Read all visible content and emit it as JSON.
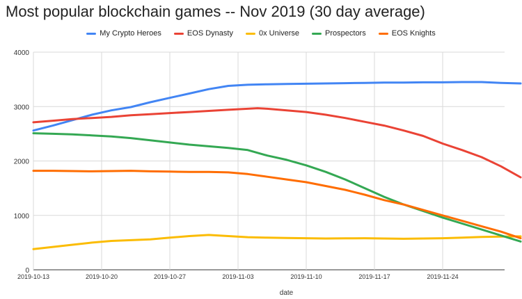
{
  "chart_data": {
    "type": "line",
    "title": "Most popular blockchain games -- Nov 2019 (30 day average)",
    "xlabel": "date",
    "ylabel": "",
    "ylim": [
      0,
      4000
    ],
    "yticks": [
      "0",
      "1000",
      "2000",
      "3000",
      "4000"
    ],
    "xticks": [
      "2019-10-13",
      "2019-10-20",
      "2019-10-27",
      "2019-11-03",
      "2019-11-10",
      "2019-11-17",
      "2019-11-24"
    ],
    "grid": true,
    "legend_position": "top",
    "x_day_start": 0,
    "x_day_end": 50,
    "series": [
      {
        "name": "My Crypto Heroes",
        "color": "#4285f4",
        "points": [
          [
            0,
            2560
          ],
          [
            2,
            2650
          ],
          [
            4,
            2750
          ],
          [
            6,
            2850
          ],
          [
            8,
            2930
          ],
          [
            10,
            2990
          ],
          [
            12,
            3080
          ],
          [
            14,
            3160
          ],
          [
            16,
            3240
          ],
          [
            18,
            3320
          ],
          [
            20,
            3380
          ],
          [
            22,
            3400
          ],
          [
            24,
            3410
          ],
          [
            26,
            3415
          ],
          [
            28,
            3420
          ],
          [
            30,
            3425
          ],
          [
            32,
            3430
          ],
          [
            34,
            3435
          ],
          [
            36,
            3440
          ],
          [
            38,
            3440
          ],
          [
            40,
            3445
          ],
          [
            42,
            3445
          ],
          [
            44,
            3450
          ],
          [
            46,
            3450
          ],
          [
            48,
            3435
          ],
          [
            50,
            3425
          ]
        ]
      },
      {
        "name": "EOS Dynasty",
        "color": "#ea4335",
        "points": [
          [
            0,
            2710
          ],
          [
            2,
            2740
          ],
          [
            4,
            2770
          ],
          [
            6,
            2790
          ],
          [
            8,
            2810
          ],
          [
            10,
            2840
          ],
          [
            12,
            2860
          ],
          [
            14,
            2880
          ],
          [
            16,
            2900
          ],
          [
            18,
            2920
          ],
          [
            20,
            2940
          ],
          [
            22,
            2960
          ],
          [
            23,
            2970
          ],
          [
            24,
            2960
          ],
          [
            26,
            2930
          ],
          [
            28,
            2900
          ],
          [
            30,
            2850
          ],
          [
            32,
            2790
          ],
          [
            34,
            2720
          ],
          [
            36,
            2650
          ],
          [
            38,
            2560
          ],
          [
            40,
            2460
          ],
          [
            42,
            2320
          ],
          [
            44,
            2200
          ],
          [
            46,
            2070
          ],
          [
            48,
            1900
          ],
          [
            50,
            1700
          ]
        ]
      },
      {
        "name": "0x Universe",
        "color": "#fbbc04",
        "points": [
          [
            0,
            380
          ],
          [
            2,
            420
          ],
          [
            4,
            460
          ],
          [
            6,
            500
          ],
          [
            8,
            530
          ],
          [
            10,
            545
          ],
          [
            12,
            560
          ],
          [
            14,
            590
          ],
          [
            16,
            620
          ],
          [
            18,
            640
          ],
          [
            20,
            620
          ],
          [
            22,
            600
          ],
          [
            24,
            590
          ],
          [
            26,
            585
          ],
          [
            28,
            580
          ],
          [
            30,
            575
          ],
          [
            32,
            578
          ],
          [
            34,
            580
          ],
          [
            36,
            575
          ],
          [
            38,
            570
          ],
          [
            40,
            575
          ],
          [
            42,
            580
          ],
          [
            44,
            590
          ],
          [
            46,
            605
          ],
          [
            48,
            610
          ],
          [
            50,
            615
          ]
        ]
      },
      {
        "name": "Prospectors",
        "color": "#34a853",
        "points": [
          [
            0,
            2510
          ],
          [
            2,
            2500
          ],
          [
            4,
            2490
          ],
          [
            6,
            2470
          ],
          [
            8,
            2450
          ],
          [
            10,
            2420
          ],
          [
            12,
            2380
          ],
          [
            14,
            2340
          ],
          [
            16,
            2300
          ],
          [
            18,
            2270
          ],
          [
            20,
            2240
          ],
          [
            22,
            2200
          ],
          [
            24,
            2100
          ],
          [
            26,
            2020
          ],
          [
            28,
            1920
          ],
          [
            30,
            1800
          ],
          [
            32,
            1660
          ],
          [
            34,
            1500
          ],
          [
            36,
            1340
          ],
          [
            38,
            1200
          ],
          [
            40,
            1080
          ],
          [
            42,
            960
          ],
          [
            44,
            850
          ],
          [
            46,
            740
          ],
          [
            48,
            630
          ],
          [
            50,
            520
          ]
        ]
      },
      {
        "name": "EOS Knights",
        "color": "#ff6d01",
        "points": [
          [
            0,
            1820
          ],
          [
            2,
            1820
          ],
          [
            4,
            1815
          ],
          [
            6,
            1810
          ],
          [
            8,
            1815
          ],
          [
            10,
            1820
          ],
          [
            12,
            1810
          ],
          [
            14,
            1805
          ],
          [
            16,
            1800
          ],
          [
            18,
            1800
          ],
          [
            20,
            1790
          ],
          [
            22,
            1760
          ],
          [
            24,
            1710
          ],
          [
            26,
            1660
          ],
          [
            28,
            1610
          ],
          [
            30,
            1540
          ],
          [
            32,
            1470
          ],
          [
            34,
            1380
          ],
          [
            36,
            1280
          ],
          [
            38,
            1200
          ],
          [
            40,
            1100
          ],
          [
            42,
            1000
          ],
          [
            44,
            900
          ],
          [
            46,
            800
          ],
          [
            48,
            700
          ],
          [
            50,
            580
          ]
        ]
      }
    ]
  }
}
